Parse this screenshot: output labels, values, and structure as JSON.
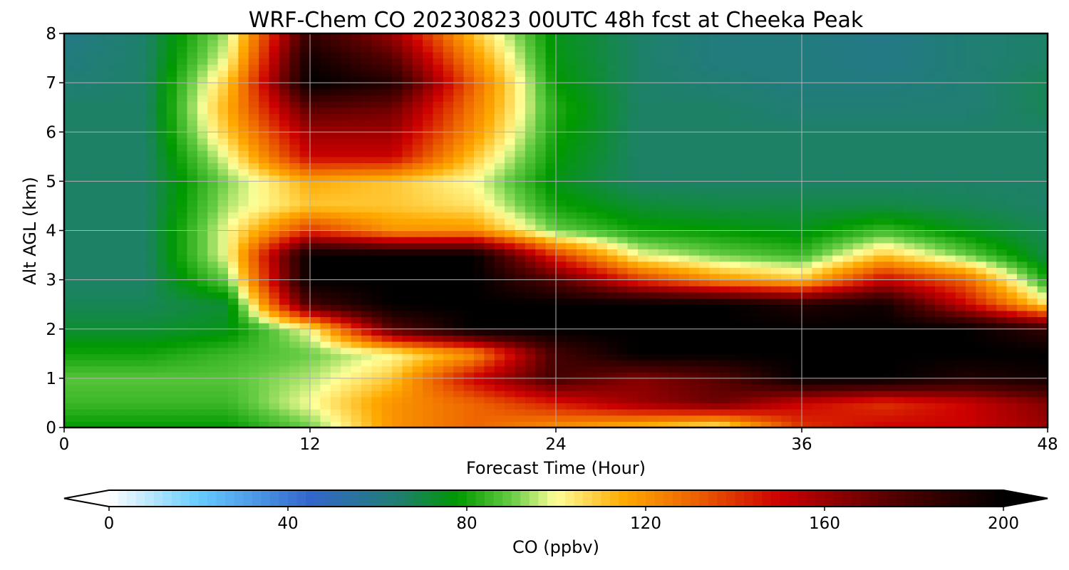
{
  "chart_data": {
    "type": "heatmap",
    "title": "WRF-Chem CO  20230823 00UTC 48h fcst at Cheeka Peak",
    "xlabel": "Forecast Time (Hour)",
    "ylabel": "Alt AGL (km)",
    "xlim": [
      0,
      48
    ],
    "ylim": [
      0,
      8
    ],
    "xticks": [
      0,
      12,
      24,
      36,
      48
    ],
    "yticks": [
      0,
      1,
      2,
      3,
      4,
      5,
      6,
      7,
      8
    ],
    "grid": true,
    "colorbar": {
      "label": "CO  (ppbv)",
      "min": 0,
      "max": 200,
      "ticks": [
        0,
        40,
        80,
        120,
        160,
        200
      ],
      "extend": "both"
    },
    "colorscale": [
      {
        "value": 0,
        "color": "#ffffff"
      },
      {
        "value": 20,
        "color": "#66ccff"
      },
      {
        "value": 45,
        "color": "#3366cc"
      },
      {
        "value": 65,
        "color": "#1f7f6f"
      },
      {
        "value": 78,
        "color": "#009900"
      },
      {
        "value": 90,
        "color": "#66cc44"
      },
      {
        "value": 100,
        "color": "#ffff99"
      },
      {
        "value": 115,
        "color": "#ffaa00"
      },
      {
        "value": 130,
        "color": "#ee6600"
      },
      {
        "value": 150,
        "color": "#cc0000"
      },
      {
        "value": 175,
        "color": "#550000"
      },
      {
        "value": 200,
        "color": "#000000"
      }
    ],
    "x": [
      0,
      4,
      8,
      12,
      16,
      20,
      24,
      28,
      32,
      36,
      40,
      44,
      48
    ],
    "y": [
      0,
      0.5,
      1,
      1.5,
      2,
      2.5,
      3,
      3.5,
      4,
      4.5,
      5,
      5.5,
      6,
      6.5,
      7,
      7.5,
      8
    ],
    "z": [
      [
        78,
        78,
        78,
        90,
        120,
        130,
        120,
        110,
        100,
        140,
        150,
        150,
        160
      ],
      [
        85,
        85,
        85,
        100,
        120,
        130,
        145,
        160,
        170,
        150,
        140,
        150,
        165
      ],
      [
        88,
        88,
        88,
        95,
        110,
        150,
        180,
        165,
        175,
        200,
        200,
        190,
        195
      ],
      [
        80,
        80,
        85,
        90,
        100,
        120,
        180,
        200,
        200,
        200,
        200,
        200,
        200
      ],
      [
        72,
        72,
        75,
        100,
        175,
        200,
        200,
        200,
        200,
        200,
        200,
        200,
        185
      ],
      [
        68,
        68,
        72,
        180,
        200,
        200,
        200,
        200,
        200,
        190,
        195,
        150,
        105
      ],
      [
        66,
        66,
        90,
        200,
        200,
        200,
        175,
        140,
        120,
        110,
        150,
        130,
        80
      ],
      [
        66,
        66,
        100,
        200,
        200,
        200,
        140,
        100,
        90,
        85,
        110,
        90,
        70
      ],
      [
        66,
        66,
        100,
        140,
        120,
        120,
        90,
        80,
        78,
        75,
        85,
        75,
        68
      ],
      [
        66,
        66,
        95,
        110,
        110,
        105,
        80,
        72,
        70,
        70,
        70,
        68,
        66
      ],
      [
        66,
        66,
        92,
        115,
        110,
        100,
        75,
        66,
        66,
        66,
        66,
        66,
        66
      ],
      [
        66,
        66,
        100,
        150,
        150,
        110,
        78,
        66,
        66,
        66,
        66,
        66,
        66
      ],
      [
        66,
        66,
        110,
        160,
        160,
        120,
        80,
        66,
        66,
        66,
        66,
        66,
        66
      ],
      [
        66,
        66,
        115,
        175,
        170,
        125,
        82,
        66,
        66,
        64,
        64,
        64,
        68
      ],
      [
        64,
        66,
        110,
        200,
        190,
        130,
        78,
        66,
        64,
        62,
        62,
        64,
        68
      ],
      [
        62,
        66,
        100,
        195,
        175,
        120,
        76,
        66,
        62,
        62,
        60,
        64,
        66
      ],
      [
        60,
        66,
        95,
        185,
        160,
        110,
        75,
        66,
        62,
        62,
        60,
        64,
        66
      ]
    ]
  }
}
